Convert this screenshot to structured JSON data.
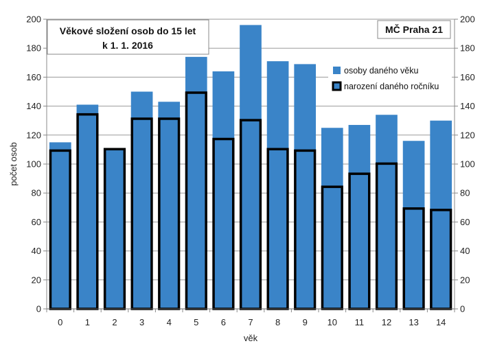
{
  "chart_data": {
    "type": "bar",
    "title_lines": [
      "Věkové složení osob do 15 let",
      "k 1. 1. 2016"
    ],
    "region_label": "MČ Praha 21",
    "xlabel": "věk",
    "ylabel": "počet osob",
    "ylim": [
      0,
      200
    ],
    "yticks": [
      0,
      20,
      40,
      60,
      80,
      100,
      120,
      140,
      160,
      180,
      200
    ],
    "categories": [
      "0",
      "1",
      "2",
      "3",
      "4",
      "5",
      "6",
      "7",
      "8",
      "9",
      "10",
      "11",
      "12",
      "13",
      "14"
    ],
    "series": [
      {
        "name": "osoby daného věku",
        "color": "#3a84c8",
        "values": [
          115,
          141,
          111,
          150,
          143,
          174,
          164,
          196,
          171,
          169,
          125,
          127,
          134,
          116,
          130
        ]
      },
      {
        "name": "narození daného ročníku",
        "color": "#3a84c8",
        "outline": "#000000",
        "values": [
          110,
          135,
          111,
          132,
          132,
          150,
          118,
          131,
          111,
          110,
          85,
          94,
          101,
          70,
          69
        ]
      }
    ],
    "grid": true,
    "secondary_y_axis": true,
    "legend_position": "top-right"
  }
}
